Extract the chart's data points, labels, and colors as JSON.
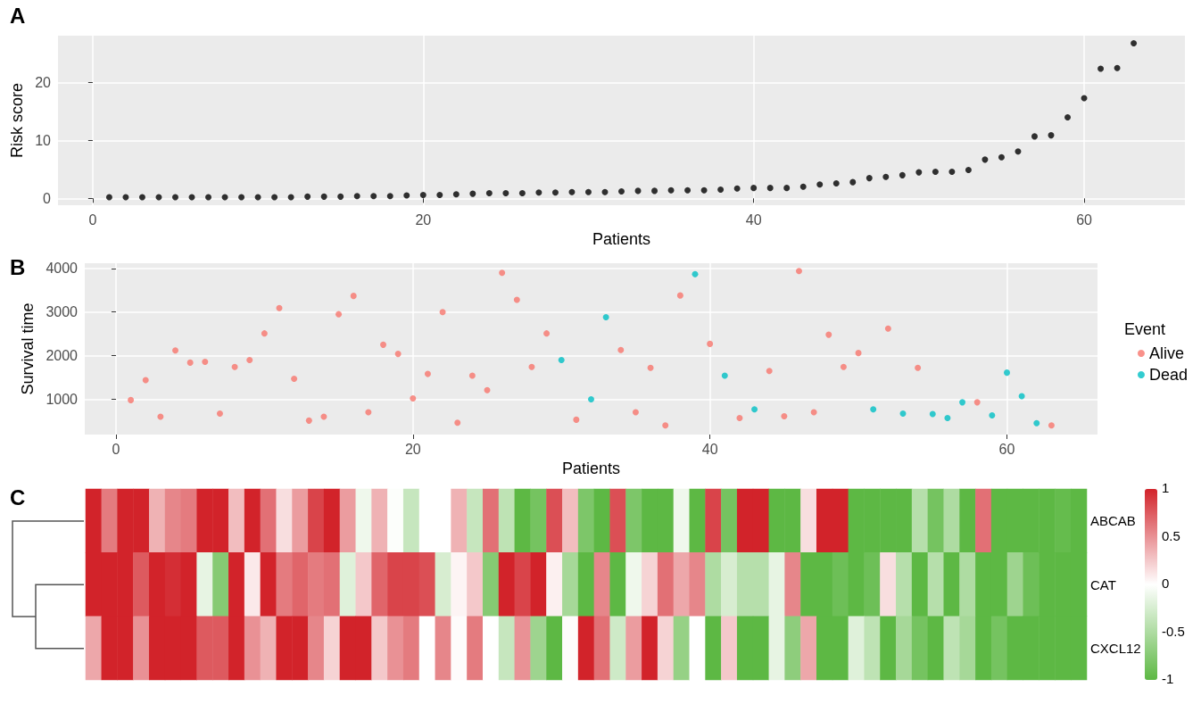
{
  "chart_data": [
    {
      "type": "scatter",
      "title": "A",
      "xlabel": "Patients",
      "ylabel": "Risk score",
      "color": "#000000",
      "marker": "circle",
      "grid": true,
      "x": [
        1,
        2,
        3,
        4,
        5,
        6,
        7,
        8,
        9,
        10,
        11,
        12,
        13,
        14,
        15,
        16,
        17,
        18,
        19,
        20,
        21,
        22,
        23,
        24,
        25,
        26,
        27,
        28,
        29,
        30,
        31,
        32,
        33,
        34,
        35,
        36,
        37,
        38,
        39,
        40,
        41,
        42,
        43,
        44,
        45,
        46,
        47,
        48,
        49,
        50,
        51,
        52,
        53,
        54,
        55,
        56,
        57,
        58,
        59,
        60,
        61,
        62,
        63
      ],
      "values": [
        0.2,
        0.2,
        0.2,
        0.2,
        0.2,
        0.2,
        0.2,
        0.2,
        0.2,
        0.2,
        0.2,
        0.2,
        0.3,
        0.3,
        0.3,
        0.4,
        0.4,
        0.4,
        0.5,
        0.6,
        0.6,
        0.7,
        0.8,
        0.9,
        0.9,
        0.9,
        1.0,
        1.0,
        1.1,
        1.1,
        1.1,
        1.2,
        1.3,
        1.3,
        1.4,
        1.4,
        1.4,
        1.5,
        1.7,
        1.8,
        1.8,
        1.8,
        2.0,
        2.4,
        2.6,
        2.8,
        3.5,
        3.7,
        4.0,
        4.5,
        4.6,
        4.6,
        4.9,
        6.7,
        7.1,
        8.1,
        10.7,
        10.9,
        14.0,
        17.3,
        22.4,
        22.5,
        26.8
      ],
      "xlim": [
        -2.1,
        66.1
      ],
      "xticks": [
        0,
        20,
        40,
        60
      ],
      "ylim": [
        -1.2,
        28.1
      ],
      "yticks": [
        0,
        10,
        20
      ]
    },
    {
      "type": "scatter",
      "title": "B",
      "xlabel": "Patients",
      "ylabel": "Survival time",
      "marker": "circle",
      "grid": true,
      "legend": "right",
      "legend_title": "Event",
      "series": [
        {
          "name": "Alive",
          "color": "#f8766d",
          "x": [
            1,
            2,
            3,
            4,
            5,
            6,
            7,
            8,
            9,
            10,
            11,
            12,
            13,
            14,
            15,
            16,
            17,
            18,
            19,
            20,
            21,
            22,
            23,
            24,
            25,
            26,
            27,
            28,
            29,
            31,
            34,
            35,
            36,
            37,
            38,
            40,
            42,
            44,
            45,
            46,
            47,
            48,
            49,
            50,
            52,
            54,
            58,
            63
          ],
          "values": [
            980,
            1440,
            600,
            2120,
            1840,
            1860,
            670,
            1740,
            1900,
            2510,
            3090,
            1470,
            510,
            600,
            2950,
            3370,
            700,
            2250,
            2040,
            1020,
            1580,
            3000,
            460,
            1540,
            1210,
            3900,
            3280,
            1740,
            2510,
            530,
            2130,
            700,
            1720,
            400,
            3380,
            2270,
            570,
            1650,
            610,
            3940,
            700,
            2480,
            1740,
            2060,
            2620,
            1720,
            930,
            400
          ]
        },
        {
          "name": "Dead",
          "color": "#00bfc4",
          "x": [
            30,
            32,
            33,
            39,
            41,
            43,
            51,
            53,
            55,
            56,
            57,
            59,
            60,
            61,
            62
          ],
          "values": [
            1900,
            1000,
            2880,
            3870,
            1540,
            770,
            770,
            670,
            660,
            570,
            930,
            630,
            1610,
            1070,
            450
          ]
        }
      ],
      "xlim": [
        -2.1,
        66.1
      ],
      "xticks": [
        0,
        20,
        40,
        60
      ],
      "ylim": [
        190,
        4120
      ],
      "yticks": [
        1000,
        2000,
        3000,
        4000
      ]
    },
    {
      "type": "heatmap",
      "title": "C",
      "categories": [
        null,
        null,
        null,
        null,
        null,
        null,
        null,
        null,
        null,
        null,
        null,
        null,
        null,
        null,
        null,
        null,
        null,
        null,
        null,
        null,
        null,
        null,
        null,
        null,
        null,
        null,
        null,
        null,
        null,
        null,
        null,
        null,
        null,
        null,
        null,
        null,
        null,
        null,
        null,
        null,
        null,
        null,
        null,
        null,
        null,
        null,
        null,
        null,
        null,
        null,
        null,
        null,
        null,
        null,
        null,
        null,
        null,
        null,
        null,
        null,
        null,
        null,
        null
      ],
      "y_categories": [
        "ABCAB",
        "CAT",
        "CXCL12"
      ],
      "cells": [
        [
          1,
          0.6,
          1,
          1,
          0.35,
          0.55,
          0.6,
          1,
          1,
          0.3,
          1,
          0.65,
          0.15,
          0.45,
          0.85,
          1,
          0.45,
          -0.1,
          0.35,
          -0.02,
          -0.35,
          0,
          0,
          0.35,
          -0.35,
          0.65,
          -0.4,
          -1,
          -0.85,
          0.8,
          0.3,
          -0.8,
          -1,
          0.8,
          -0.8,
          -1,
          -1,
          -0.1,
          -1,
          0.85,
          -0.85,
          1,
          1,
          -1,
          -1,
          0.15,
          1,
          1,
          -1,
          -1,
          -1,
          -1,
          -0.45,
          -0.85,
          -0.5,
          -1,
          0.65,
          -1,
          -1,
          -1,
          -1,
          -0.95,
          -1
        ],
        [
          1,
          1,
          1,
          0.75,
          1,
          0.95,
          1,
          -0.15,
          -0.75,
          1,
          0.1,
          1,
          0.6,
          0.7,
          0.6,
          0.65,
          -0.2,
          0.25,
          0.7,
          0.85,
          0.85,
          0.8,
          -0.25,
          0.05,
          0.25,
          -0.75,
          1,
          0.85,
          1,
          0.07,
          -0.55,
          -1,
          0.55,
          -1,
          -0.1,
          0.2,
          0.65,
          0.4,
          0.55,
          -0.5,
          -0.25,
          -0.45,
          -0.45,
          -0.15,
          0.55,
          -1,
          -1,
          -0.9,
          -1,
          -0.9,
          0.15,
          -0.45,
          -1,
          -0.45,
          -1,
          -0.5,
          -1,
          -1,
          -0.6,
          -0.9,
          -1,
          -1,
          -1
        ],
        [
          0.4,
          1,
          1,
          0.5,
          1,
          1,
          1,
          0.75,
          0.75,
          1,
          0.5,
          0.35,
          1,
          1,
          0.55,
          0.2,
          1,
          1,
          0.25,
          0.5,
          0.6,
          0,
          0.55,
          0.02,
          0.6,
          0,
          -0.35,
          0.5,
          -0.6,
          -1,
          0.02,
          1,
          0.65,
          -0.3,
          0.45,
          1,
          0.2,
          -0.65,
          0,
          -1,
          0.25,
          -1,
          -1,
          -0.15,
          -0.7,
          0.4,
          -1,
          -1,
          -0.2,
          -0.4,
          -1,
          -0.55,
          -0.85,
          -1,
          -0.4,
          -0.55,
          -1,
          -0.85,
          -1,
          -1,
          -1,
          -1,
          -1
        ]
      ],
      "clim": [
        -1,
        1
      ],
      "cticks": [
        -1,
        -0.5,
        0,
        0.5,
        1
      ]
    }
  ]
}
